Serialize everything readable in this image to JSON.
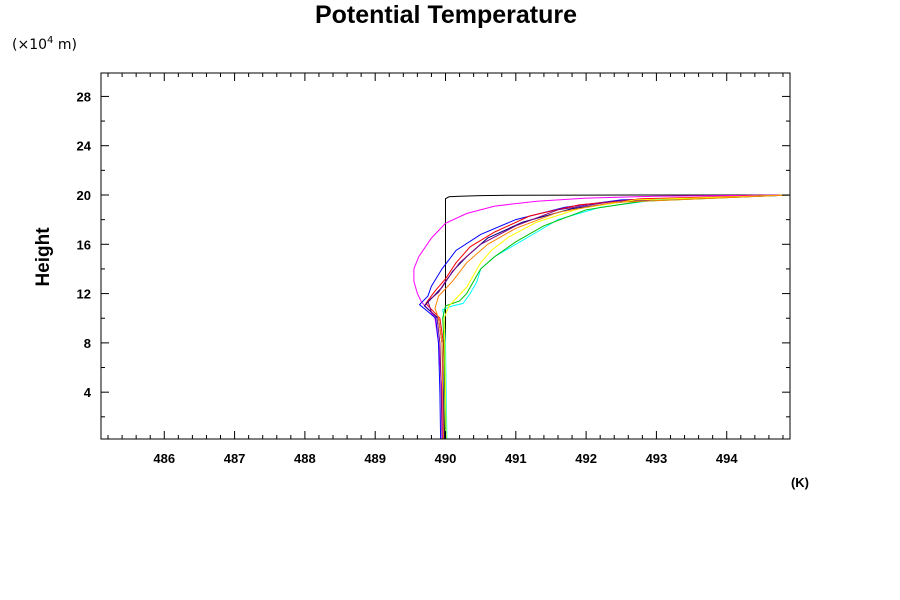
{
  "chart_data": {
    "type": "line",
    "title": "Potential Temperature",
    "ylabel": "Height",
    "yunit": {
      "prefix": "(×10",
      "exponent": "4",
      "suffix": " m)"
    },
    "xunit": "(K)",
    "xlim": [
      485.1,
      494.9
    ],
    "ylim": [
      0.2,
      29.9
    ],
    "xticks": [
      486,
      487,
      488,
      489,
      490,
      491,
      492,
      493,
      494
    ],
    "xtick_labels": [
      "486",
      "487",
      "488",
      "489",
      "490",
      "491",
      "492",
      "493",
      "494"
    ],
    "xminor_step": 0.2,
    "yticks": [
      4,
      8,
      12,
      16,
      20,
      24,
      28
    ],
    "ytick_labels": [
      "4",
      "8",
      "12",
      "16",
      "20",
      "24",
      "28"
    ],
    "yminor_step": 2,
    "grid": false,
    "series": [
      {
        "color": "#000000",
        "x": [
          489.99,
          490.0,
          490.0,
          490.0,
          490.0,
          490.0,
          490.05,
          490.2,
          490.5,
          491.0,
          492.0,
          493.5,
          494.9
        ],
        "y": [
          0.2,
          4,
          8,
          12,
          16,
          19.7,
          19.85,
          19.9,
          19.95,
          19.98,
          19.99,
          20.0,
          20.0
        ]
      },
      {
        "color": "#ff00ff",
        "x": [
          489.96,
          489.95,
          489.9,
          489.85,
          489.78,
          489.66,
          489.6,
          489.55,
          489.55,
          489.62,
          489.8,
          490.0,
          490.3,
          490.7,
          491.3,
          492.0,
          493.0,
          494.9
        ],
        "y": [
          0.2,
          4,
          8,
          10,
          10.6,
          11.3,
          12,
          13,
          14,
          15,
          16.5,
          17.7,
          18.5,
          19.1,
          19.5,
          19.75,
          19.9,
          20.0
        ]
      },
      {
        "color": "#0000ff",
        "x": [
          489.93,
          489.92,
          489.9,
          489.86,
          489.76,
          489.63,
          489.75,
          489.8,
          489.95,
          490.15,
          490.5,
          491.0,
          491.7,
          492.5,
          494.9
        ],
        "y": [
          0.2,
          4,
          8,
          10,
          10.5,
          11.1,
          11.8,
          12.6,
          14,
          15.5,
          16.8,
          18,
          19,
          19.6,
          20.0
        ]
      },
      {
        "color": "#ff0000",
        "x": [
          490.0,
          489.99,
          489.97,
          489.92,
          489.82,
          489.72,
          489.85,
          490.0,
          490.15,
          490.35,
          490.7,
          491.2,
          491.9,
          492.8,
          494.9
        ],
        "y": [
          0.2,
          4,
          8,
          10,
          10.6,
          11.2,
          12.2,
          13.2,
          14.5,
          15.8,
          17,
          18.3,
          19.2,
          19.7,
          20.0
        ]
      },
      {
        "color": "#000080",
        "x": [
          489.98,
          489.97,
          489.95,
          489.9,
          489.8,
          489.7,
          489.8,
          489.95,
          490.1,
          490.3,
          490.6,
          491.1,
          491.8,
          492.6,
          494.9
        ],
        "y": [
          0.2,
          4,
          8,
          10,
          10.5,
          11.0,
          11.6,
          12.5,
          13.8,
          15,
          16.5,
          17.8,
          18.9,
          19.5,
          20.0
        ]
      },
      {
        "color": "#800080",
        "x": [
          489.95,
          489.94,
          489.92,
          489.88,
          489.8,
          489.75,
          489.9,
          490.0,
          490.2,
          490.5,
          491.0,
          491.6,
          492.4,
          494.9
        ],
        "y": [
          0.2,
          4,
          8,
          10,
          10.5,
          11.4,
          12.1,
          13,
          14.5,
          16,
          17.5,
          18.8,
          19.5,
          20.0
        ]
      },
      {
        "color": "#00ffff",
        "x": [
          490.02,
          490.01,
          490.0,
          489.98,
          489.96,
          490.1,
          490.25,
          490.35,
          490.45,
          490.5,
          490.7,
          491.0,
          491.3,
          491.6,
          492.2,
          493.0,
          494.9
        ],
        "y": [
          0.2,
          4,
          8,
          10,
          10.7,
          11.0,
          11.2,
          12,
          13,
          14,
          15,
          16,
          17,
          18,
          19,
          19.6,
          20.0
        ]
      },
      {
        "color": "#00c000",
        "x": [
          490.0,
          489.99,
          489.98,
          489.96,
          490.0,
          490.2,
          490.3,
          490.4,
          490.5,
          490.7,
          491.0,
          491.4,
          492.0,
          492.8,
          494.9
        ],
        "y": [
          0.2,
          4,
          8,
          10,
          11,
          11.4,
          12,
          13,
          14,
          15,
          16.2,
          17.5,
          18.8,
          19.5,
          20.0
        ]
      },
      {
        "color": "#ffff00",
        "x": [
          490.01,
          490.0,
          489.99,
          489.98,
          490.05,
          490.3,
          490.4,
          490.5,
          490.65,
          490.9,
          491.3,
          491.9,
          492.7,
          494.9
        ],
        "y": [
          0.2,
          4,
          8,
          10,
          11,
          12.5,
          13.5,
          14.5,
          15.5,
          16.6,
          17.8,
          18.9,
          19.6,
          20.0
        ]
      },
      {
        "color": "#ff8000",
        "x": [
          489.97,
          489.96,
          489.95,
          489.9,
          489.85,
          489.9,
          490.1,
          490.3,
          490.6,
          491.0,
          491.6,
          492.4,
          494.9
        ],
        "y": [
          0.2,
          4,
          8,
          10,
          10.8,
          11.8,
          13,
          14.5,
          16,
          17.3,
          18.6,
          19.4,
          20.0
        ]
      }
    ]
  }
}
